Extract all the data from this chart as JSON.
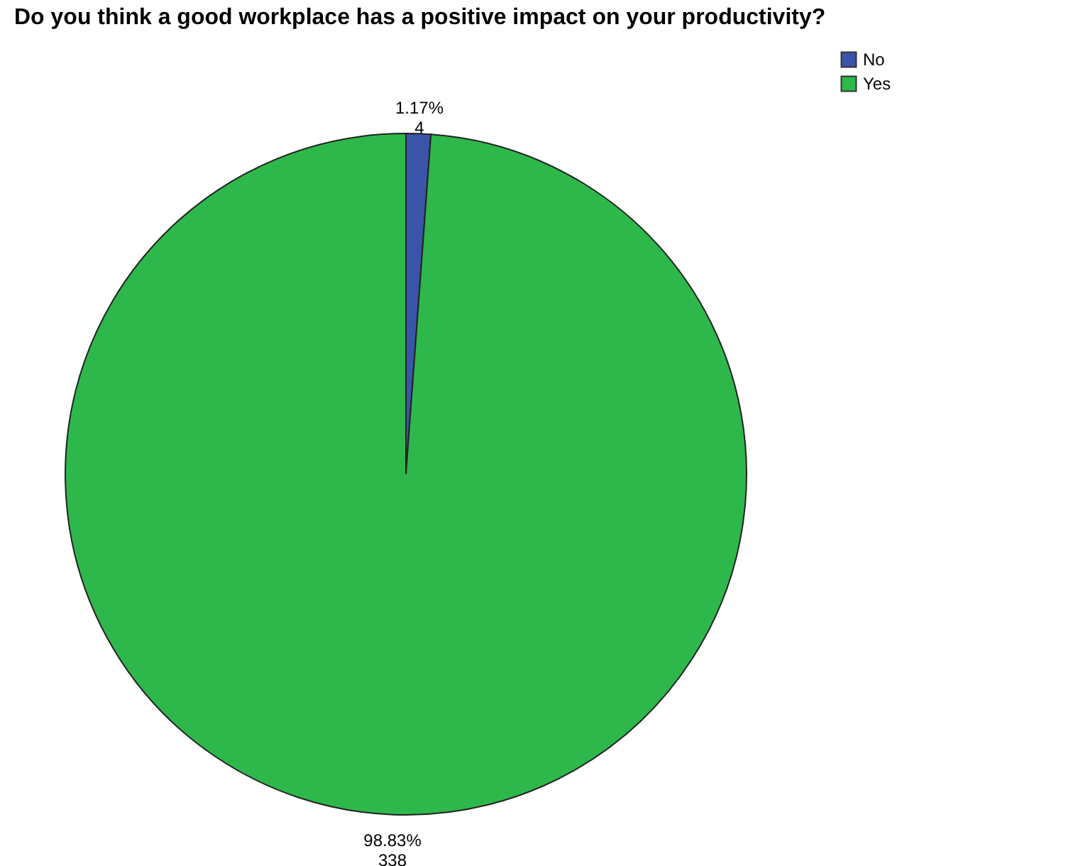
{
  "chart_data": {
    "type": "pie",
    "title": "Do you think a good workplace has a positive impact on your productivity?",
    "categories": [
      "No",
      "Yes"
    ],
    "values": [
      4,
      338
    ],
    "colors": [
      "#3a55a8",
      "#2eb84b"
    ],
    "value_labels": [
      "1.17%\n4",
      "98.83%\n338"
    ],
    "legend": "top right"
  }
}
